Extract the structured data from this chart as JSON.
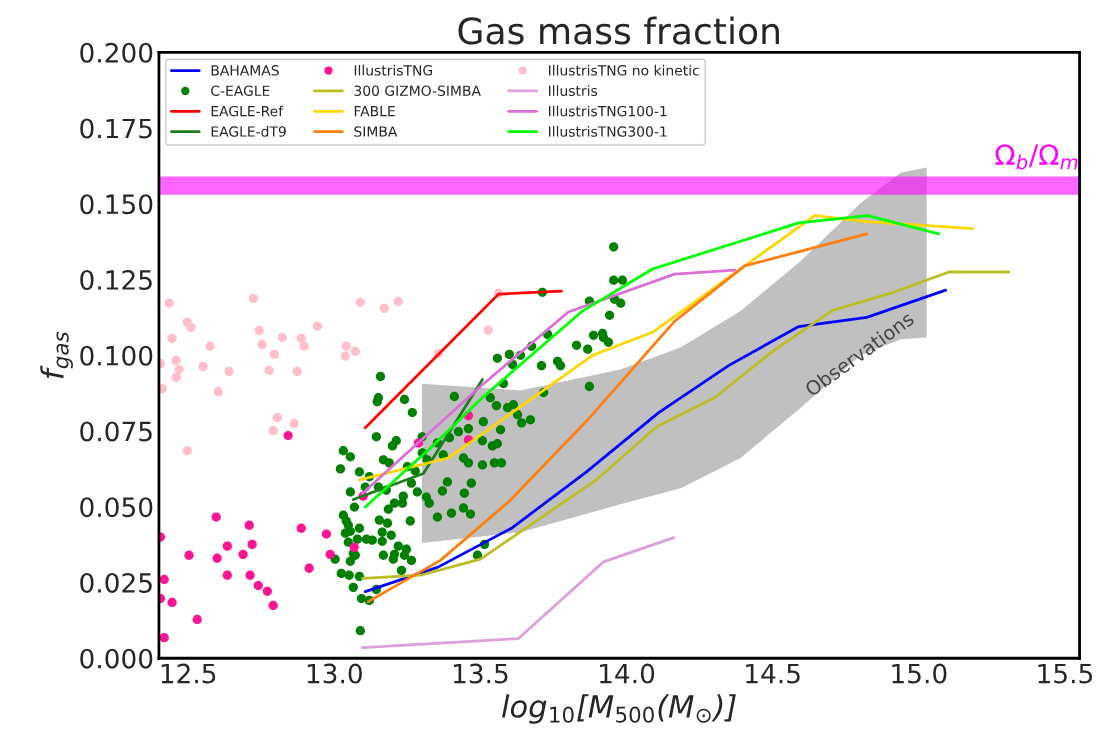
{
  "chart_data": {
    "type": "line",
    "title": "Gas mass fraction",
    "xlabel": "log$_{10}$[M$_{500}$(M$_{⊙}$)]",
    "ylabel": "f$_{gas}$",
    "xlim": [
      12.4,
      15.55
    ],
    "ylim": [
      0,
      0.2
    ],
    "xticks": [
      12.5,
      {
        "value": 13,
        "label": "13.0"
      },
      13.5,
      {
        "value": 14,
        "label": "14.0"
      },
      14.5,
      {
        "value": 15,
        "label": "15.0"
      },
      15.5
    ],
    "yticks": [
      {
        "value": 0,
        "label": "0.000"
      },
      {
        "value": 0.025,
        "label": "0.025"
      },
      {
        "value": 0.05,
        "label": "0.050"
      },
      {
        "value": 0.075,
        "label": "0.075"
      },
      {
        "value": 0.1,
        "label": "0.100"
      },
      {
        "value": 0.125,
        "label": "0.125"
      },
      {
        "value": 0.15,
        "label": "0.150"
      },
      {
        "value": 0.175,
        "label": "0.175"
      },
      {
        "value": 0.2,
        "label": "0.200"
      }
    ],
    "grid": false,
    "legend": "top left",
    "annotations": [
      {
        "text": "Observations",
        "x": 14.8,
        "y": 0.1
      }
    ],
    "bands": [
      {
        "axis": "y",
        "from": 0.153,
        "to": 0.159,
        "label": "Ω$_{b}$/Ω$_{m}$",
        "color": "#ff00ff"
      }
    ],
    "series": [
      {
        "type": "area",
        "color": "#c0c0c0",
        "x": [
          13.3,
          13.637,
          13.979,
          14.185,
          14.39,
          14.596,
          14.801,
          14.938,
          15.027
        ],
        "lower": [
          0.038,
          0.0416,
          0.0508,
          0.0561,
          0.0661,
          0.0827,
          0.1,
          0.1053,
          0.1059
        ],
        "upper": [
          0.0906,
          0.0884,
          0.0953,
          0.1026,
          0.1146,
          0.1311,
          0.1503,
          0.1603,
          0.162
        ],
        "values": [
          null,
          null,
          null,
          null,
          null,
          null,
          null,
          null,
          null
        ]
      },
      {
        "name": "BAHAMAS",
        "color": "#0000ff",
        "x": [
          13.106,
          13.353,
          13.606,
          13.863,
          14.11,
          14.349,
          14.589,
          14.822,
          15.092
        ],
        "values": [
          0.022,
          0.03,
          0.0429,
          0.0615,
          0.0811,
          0.0966,
          0.1095,
          0.1125,
          0.1215
        ]
      },
      {
        "name": "C-EAGLE",
        "type": "scatter",
        "color": "#008000",
        "x": [
          13.158,
          13.151,
          13.147,
          13.24,
          13.267,
          13.144,
          13.212,
          13.199,
          13.031,
          13.055,
          13.168,
          13.188,
          13.021,
          13.086,
          13.12,
          13.25,
          13.277,
          13.106,
          13.055,
          13.151,
          13.178,
          13.264,
          13.284,
          13.236,
          13.206,
          13.233,
          13.185,
          13.069,
          13.031,
          13.041,
          13.048,
          13.086,
          13.154,
          13.182,
          13.26,
          13.038,
          13.055,
          13.195,
          13.164,
          13.11,
          13.13,
          13.164,
          13.048,
          13.079,
          13.219,
          13.247,
          13.065,
          13.072,
          13.168,
          13.206,
          13.24,
          13.202,
          13.264,
          13.003,
          13.055,
          13.23,
          13.024,
          13.051,
          13.086,
          13.065,
          13.144,
          13.093,
          13.12,
          13.089,
          13.301,
          13.353,
          13.394,
          13.301,
          13.373,
          13.318,
          13.411,
          13.442,
          13.459,
          13.507,
          13.387,
          13.469,
          13.37,
          13.445,
          13.315,
          13.325,
          13.442,
          13.401,
          13.466,
          13.353,
          13.514,
          13.49,
          13.425,
          13.459,
          13.51,
          13.507,
          13.541,
          13.558,
          13.569,
          13.548,
          13.572,
          13.534,
          13.555,
          13.593,
          13.613,
          13.627,
          13.641,
          13.671,
          13.579,
          13.558,
          13.599,
          13.637,
          13.61,
          13.675,
          13.709,
          13.716,
          13.764,
          13.774,
          13.829,
          13.867,
          13.873,
          13.73,
          13.887,
          13.918,
          13.921,
          13.938,
          13.873,
          13.942,
          13.959,
          13.98,
          13.956,
          13.986,
          13.956,
          13.712
        ],
        "values": [
          0.093,
          0.086,
          0.0847,
          0.0854,
          0.0811,
          0.0731,
          0.0718,
          0.0701,
          0.0685,
          0.0665,
          0.0655,
          0.0645,
          0.0625,
          0.0615,
          0.0599,
          0.0632,
          0.0618,
          0.0565,
          0.0549,
          0.0565,
          0.0555,
          0.0578,
          0.0549,
          0.0535,
          0.0512,
          0.0512,
          0.0492,
          0.0499,
          0.0472,
          0.0453,
          0.0439,
          0.0429,
          0.0456,
          0.0446,
          0.0453,
          0.0413,
          0.0419,
          0.0406,
          0.0416,
          0.0393,
          0.039,
          0.0386,
          0.0383,
          0.0393,
          0.037,
          0.036,
          0.0346,
          0.034,
          0.034,
          0.0343,
          0.034,
          0.0327,
          0.0323,
          0.0327,
          0.032,
          0.029,
          0.028,
          0.0274,
          0.027,
          0.0234,
          0.0227,
          0.0197,
          0.0191,
          0.0091,
          0.0731,
          0.0711,
          0.0728,
          0.0678,
          0.0671,
          0.0655,
          0.0864,
          0.0661,
          0.0645,
          0.0638,
          0.0582,
          0.0578,
          0.0552,
          0.0545,
          0.0532,
          0.0512,
          0.0496,
          0.0479,
          0.0476,
          0.0466,
          0.0376,
          0.034,
          0.0748,
          0.0758,
          0.0781,
          0.0718,
          0.0701,
          0.0708,
          0.0754,
          0.0645,
          0.0645,
          0.086,
          0.0834,
          0.0827,
          0.0837,
          0.0804,
          0.0777,
          0.0787,
          0.0907,
          0.099,
          0.1003,
          0.1,
          0.097,
          0.103,
          0.0966,
          0.0877,
          0.098,
          0.0966,
          0.1033,
          0.102,
          0.0897,
          0.1069,
          0.1066,
          0.1072,
          0.1059,
          0.1043,
          0.1179,
          0.1132,
          0.1185,
          0.1172,
          0.1248,
          0.1248,
          0.1358,
          0.1208
        ]
      },
      {
        "name": "EAGLE-Ref",
        "color": "#ff0000",
        "x": [
          13.106,
          13.562,
          13.777
        ],
        "values": [
          0.0761,
          0.1202,
          0.1212
        ]
      },
      {
        "name": "EAGLE-dT9",
        "color": "#1e7d1e",
        "x": [
          13.065,
          13.305,
          13.507
        ],
        "values": [
          0.0524,
          0.061,
          0.092
        ]
      },
      {
        "name": "IllustrisTNG",
        "type": "scatter",
        "color": "#ff1493",
        "x": [
          12.842,
          12.596,
          12.709,
          12.887,
          12.973,
          12.634,
          12.719,
          12.503,
          12.599,
          12.688,
          12.986,
          12.914,
          12.634,
          12.712,
          12.74,
          12.771,
          12.791,
          12.418,
          12.445,
          12.531,
          12.418,
          13.068,
          13.288,
          13.459,
          13.099,
          12.405,
          12.405,
          13.459
        ],
        "values": [
          0.0735,
          0.0466,
          0.0439,
          0.0429,
          0.041,
          0.037,
          0.0376,
          0.034,
          0.033,
          0.0343,
          0.0343,
          0.0297,
          0.0274,
          0.0274,
          0.024,
          0.0221,
          0.0174,
          0.026,
          0.0184,
          0.0128,
          0.0068,
          0.0366,
          0.0711,
          0.0721,
          0.0535,
          0.04,
          0.0197,
          0.0801
        ]
      },
      {
        "name": "300 GIZMO-SIMBA",
        "color": "#bcbd22",
        "x": [
          13.096,
          13.295,
          13.5,
          13.897,
          14.103,
          14.301,
          14.5,
          14.705,
          14.904,
          15.103,
          15.308
        ],
        "values": [
          0.0264,
          0.0274,
          0.0327,
          0.0589,
          0.0764,
          0.086,
          0.1013,
          0.1148,
          0.1205,
          0.1275,
          0.1275
        ]
      },
      {
        "name": "FABLE",
        "color": "#ffd700",
        "x": [
          13.086,
          13.39,
          13.884,
          14.089,
          14.644,
          14.822,
          15.185
        ],
        "values": [
          0.0589,
          0.0661,
          0.1,
          0.1076,
          0.1461,
          0.1441,
          0.1418
        ]
      },
      {
        "name": "SIMBA",
        "color": "#ff7f0e",
        "x": [
          13.116,
          13.363,
          13.596,
          13.87,
          14.164,
          14.404,
          14.822
        ],
        "values": [
          0.0187,
          0.0323,
          0.0516,
          0.079,
          0.1112,
          0.1295,
          0.1401
        ]
      },
      {
        "name": "IllustrisTNG no kinetic",
        "type": "scatter",
        "color": "#ffc0cb",
        "x": [
          12.435,
          12.723,
          13.089,
          13.171,
          13.219,
          12.497,
          12.51,
          12.942,
          12.743,
          12.445,
          12.822,
          12.887,
          12.575,
          12.753,
          12.897,
          13.041,
          13.072,
          13.038,
          12.795,
          12.405,
          12.459,
          12.469,
          12.459,
          12.551,
          12.64,
          12.777,
          12.873,
          12.411,
          12.603,
          12.805,
          12.863,
          12.791,
          12.497,
          13.356,
          13.562,
          13.527
        ],
        "values": [
          0.1172,
          0.1188,
          0.1175,
          0.1155,
          0.1178,
          0.1109,
          0.1092,
          0.1096,
          0.1082,
          0.1056,
          0.1059,
          0.1056,
          0.103,
          0.1036,
          0.103,
          0.103,
          0.1013,
          0.0997,
          0.1003,
          0.0973,
          0.0983,
          0.0953,
          0.0927,
          0.0963,
          0.0947,
          0.095,
          0.0947,
          0.089,
          0.088,
          0.0794,
          0.0774,
          0.0751,
          0.0685,
          0.1006,
          0.1205,
          0.1083
        ]
      },
      {
        "name": "Illustris",
        "color": "#dda0dd",
        "x": [
          13.096,
          13.376,
          13.63,
          13.921,
          14.161
        ],
        "values": [
          0.0035,
          0.0051,
          0.0065,
          0.0318,
          0.0398
        ]
      },
      {
        "name": "IllustrisTNG100-1",
        "color": "#da70d6",
        "x": [
          13.096,
          13.5,
          13.801,
          14.164,
          14.37
        ],
        "values": [
          0.0544,
          0.0897,
          0.1143,
          0.1268,
          0.1281
        ]
      },
      {
        "name": "IllustrisTNG300-1",
        "color": "#00ff00",
        "x": [
          13.106,
          13.329,
          13.51,
          13.849,
          14.089,
          14.589,
          14.825,
          15.068
        ],
        "values": [
          0.0499,
          0.0694,
          0.0863,
          0.1146,
          0.1285,
          0.1437,
          0.1461,
          0.1401
        ]
      }
    ]
  }
}
